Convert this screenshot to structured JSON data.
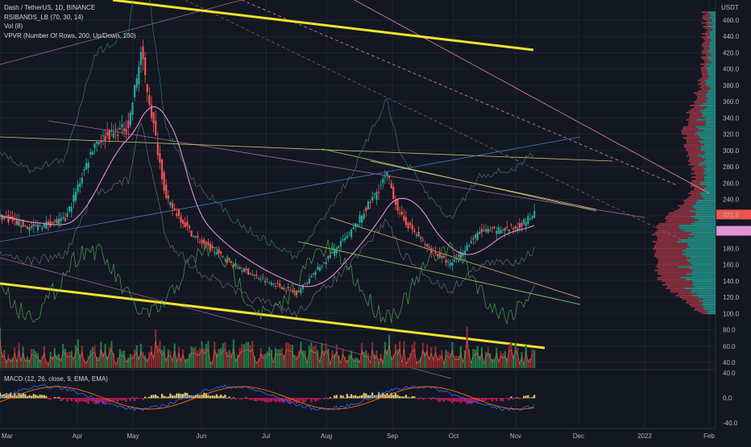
{
  "legend": {
    "symbol": "Dash / TetherUS, 1D, BINANCE",
    "rsibands": "RSIBANDS_LB (70, 30, 14)",
    "vol": "Vol (8)",
    "vpvr": "VPVR (Number Of Rows, 200, Up/Down, 100)",
    "macd": "MACD (12, 26, close, 9, EMA, EMA)"
  },
  "price_axis": {
    "currency": "USDT",
    "ticks": [
      460,
      440,
      420,
      400,
      380,
      360,
      340,
      320,
      300,
      280,
      260,
      240,
      220,
      200,
      180,
      160,
      140,
      120,
      100,
      80,
      60,
      40
    ],
    "last_price_label": "221.5",
    "secondary_label": "201.5"
  },
  "macd_axis": {
    "ticks": [
      "40.0",
      "0.0",
      "-40.0"
    ]
  },
  "time_axis": {
    "labels": [
      "Mar",
      "Apr",
      "May",
      "Jun",
      "Jul",
      "Aug",
      "Sep",
      "Oct",
      "Nov",
      "Dec",
      "2022",
      "Feb"
    ]
  },
  "colors": {
    "up": "#26a69a",
    "down": "#ef5350",
    "trend": "#f5e32c",
    "macd": "#2962ff",
    "signal": "#ff6d00",
    "rsi": "#4caf50",
    "vpvr_up": "#26a69a",
    "vpvr_down": "#b2394b"
  },
  "chart_data": {
    "type": "line",
    "symbol": "Dash / TetherUS",
    "interval": "1D",
    "price_series": [
      {
        "date": "2021-03-01",
        "close": 220
      },
      {
        "date": "2021-03-15",
        "close": 205
      },
      {
        "date": "2021-04-01",
        "close": 215
      },
      {
        "date": "2021-04-15",
        "close": 310
      },
      {
        "date": "2021-05-01",
        "close": 330
      },
      {
        "date": "2021-05-07",
        "close": 420
      },
      {
        "date": "2021-05-19",
        "close": 240
      },
      {
        "date": "2021-06-01",
        "close": 195
      },
      {
        "date": "2021-06-20",
        "close": 160
      },
      {
        "date": "2021-07-01",
        "close": 145
      },
      {
        "date": "2021-07-20",
        "close": 125
      },
      {
        "date": "2021-08-01",
        "close": 160
      },
      {
        "date": "2021-08-15",
        "close": 200
      },
      {
        "date": "2021-09-01",
        "close": 270
      },
      {
        "date": "2021-09-07",
        "close": 220
      },
      {
        "date": "2021-09-21",
        "close": 180
      },
      {
        "date": "2021-10-01",
        "close": 160
      },
      {
        "date": "2021-10-15",
        "close": 200
      },
      {
        "date": "2021-11-01",
        "close": 205
      },
      {
        "date": "2021-11-10",
        "close": 222
      }
    ],
    "price_range": [
      35,
      480
    ],
    "macd_range": [
      -50,
      50
    ],
    "last_price": 221.5
  }
}
